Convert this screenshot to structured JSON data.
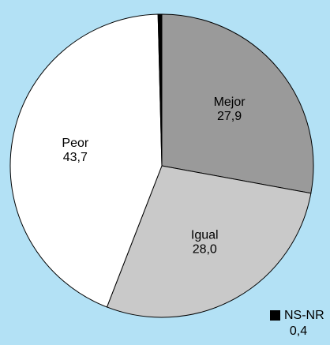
{
  "chart_data": {
    "type": "pie",
    "categories": [
      "Mejor",
      "Igual",
      "Peor",
      "NS-NR"
    ],
    "values": [
      27.9,
      28.0,
      43.7,
      0.4
    ],
    "value_labels": [
      "27,9",
      "28,0",
      "43,7",
      "0,4"
    ],
    "colors": [
      "#9a9a9a",
      "#c9c9c9",
      "#ffffff",
      "#000000"
    ]
  }
}
